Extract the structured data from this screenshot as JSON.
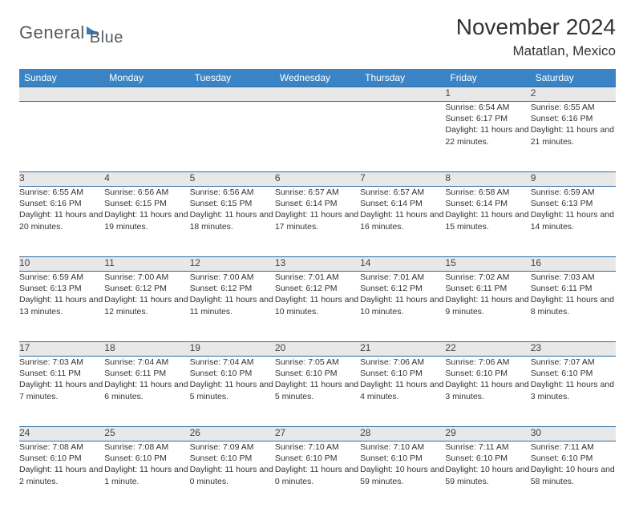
{
  "brand": {
    "word1": "General",
    "word2": "Blue"
  },
  "title": "November 2024",
  "location": "Matatlan, Mexico",
  "colors": {
    "header_bg": "#3a84c5",
    "header_fg": "#ffffff",
    "row_border": "#2f6aa0",
    "daynum_bg": "#e8e8e8",
    "brand_gray": "#555a5f",
    "brand_blue": "#2f7fc1"
  },
  "typography": {
    "body_pt": 10.5,
    "title_pt": 28,
    "weekday_pt": 12
  },
  "weekdays": [
    "Sunday",
    "Monday",
    "Tuesday",
    "Wednesday",
    "Thursday",
    "Friday",
    "Saturday"
  ],
  "weeks": [
    [
      null,
      null,
      null,
      null,
      null,
      {
        "n": "1",
        "sunrise": "Sunrise: 6:54 AM",
        "sunset": "Sunset: 6:17 PM",
        "daylight": "Daylight: 11 hours and 22 minutes."
      },
      {
        "n": "2",
        "sunrise": "Sunrise: 6:55 AM",
        "sunset": "Sunset: 6:16 PM",
        "daylight": "Daylight: 11 hours and 21 minutes."
      }
    ],
    [
      {
        "n": "3",
        "sunrise": "Sunrise: 6:55 AM",
        "sunset": "Sunset: 6:16 PM",
        "daylight": "Daylight: 11 hours and 20 minutes."
      },
      {
        "n": "4",
        "sunrise": "Sunrise: 6:56 AM",
        "sunset": "Sunset: 6:15 PM",
        "daylight": "Daylight: 11 hours and 19 minutes."
      },
      {
        "n": "5",
        "sunrise": "Sunrise: 6:56 AM",
        "sunset": "Sunset: 6:15 PM",
        "daylight": "Daylight: 11 hours and 18 minutes."
      },
      {
        "n": "6",
        "sunrise": "Sunrise: 6:57 AM",
        "sunset": "Sunset: 6:14 PM",
        "daylight": "Daylight: 11 hours and 17 minutes."
      },
      {
        "n": "7",
        "sunrise": "Sunrise: 6:57 AM",
        "sunset": "Sunset: 6:14 PM",
        "daylight": "Daylight: 11 hours and 16 minutes."
      },
      {
        "n": "8",
        "sunrise": "Sunrise: 6:58 AM",
        "sunset": "Sunset: 6:14 PM",
        "daylight": "Daylight: 11 hours and 15 minutes."
      },
      {
        "n": "9",
        "sunrise": "Sunrise: 6:59 AM",
        "sunset": "Sunset: 6:13 PM",
        "daylight": "Daylight: 11 hours and 14 minutes."
      }
    ],
    [
      {
        "n": "10",
        "sunrise": "Sunrise: 6:59 AM",
        "sunset": "Sunset: 6:13 PM",
        "daylight": "Daylight: 11 hours and 13 minutes."
      },
      {
        "n": "11",
        "sunrise": "Sunrise: 7:00 AM",
        "sunset": "Sunset: 6:12 PM",
        "daylight": "Daylight: 11 hours and 12 minutes."
      },
      {
        "n": "12",
        "sunrise": "Sunrise: 7:00 AM",
        "sunset": "Sunset: 6:12 PM",
        "daylight": "Daylight: 11 hours and 11 minutes."
      },
      {
        "n": "13",
        "sunrise": "Sunrise: 7:01 AM",
        "sunset": "Sunset: 6:12 PM",
        "daylight": "Daylight: 11 hours and 10 minutes."
      },
      {
        "n": "14",
        "sunrise": "Sunrise: 7:01 AM",
        "sunset": "Sunset: 6:12 PM",
        "daylight": "Daylight: 11 hours and 10 minutes."
      },
      {
        "n": "15",
        "sunrise": "Sunrise: 7:02 AM",
        "sunset": "Sunset: 6:11 PM",
        "daylight": "Daylight: 11 hours and 9 minutes."
      },
      {
        "n": "16",
        "sunrise": "Sunrise: 7:03 AM",
        "sunset": "Sunset: 6:11 PM",
        "daylight": "Daylight: 11 hours and 8 minutes."
      }
    ],
    [
      {
        "n": "17",
        "sunrise": "Sunrise: 7:03 AM",
        "sunset": "Sunset: 6:11 PM",
        "daylight": "Daylight: 11 hours and 7 minutes."
      },
      {
        "n": "18",
        "sunrise": "Sunrise: 7:04 AM",
        "sunset": "Sunset: 6:11 PM",
        "daylight": "Daylight: 11 hours and 6 minutes."
      },
      {
        "n": "19",
        "sunrise": "Sunrise: 7:04 AM",
        "sunset": "Sunset: 6:10 PM",
        "daylight": "Daylight: 11 hours and 5 minutes."
      },
      {
        "n": "20",
        "sunrise": "Sunrise: 7:05 AM",
        "sunset": "Sunset: 6:10 PM",
        "daylight": "Daylight: 11 hours and 5 minutes."
      },
      {
        "n": "21",
        "sunrise": "Sunrise: 7:06 AM",
        "sunset": "Sunset: 6:10 PM",
        "daylight": "Daylight: 11 hours and 4 minutes."
      },
      {
        "n": "22",
        "sunrise": "Sunrise: 7:06 AM",
        "sunset": "Sunset: 6:10 PM",
        "daylight": "Daylight: 11 hours and 3 minutes."
      },
      {
        "n": "23",
        "sunrise": "Sunrise: 7:07 AM",
        "sunset": "Sunset: 6:10 PM",
        "daylight": "Daylight: 11 hours and 3 minutes."
      }
    ],
    [
      {
        "n": "24",
        "sunrise": "Sunrise: 7:08 AM",
        "sunset": "Sunset: 6:10 PM",
        "daylight": "Daylight: 11 hours and 2 minutes."
      },
      {
        "n": "25",
        "sunrise": "Sunrise: 7:08 AM",
        "sunset": "Sunset: 6:10 PM",
        "daylight": "Daylight: 11 hours and 1 minute."
      },
      {
        "n": "26",
        "sunrise": "Sunrise: 7:09 AM",
        "sunset": "Sunset: 6:10 PM",
        "daylight": "Daylight: 11 hours and 0 minutes."
      },
      {
        "n": "27",
        "sunrise": "Sunrise: 7:10 AM",
        "sunset": "Sunset: 6:10 PM",
        "daylight": "Daylight: 11 hours and 0 minutes."
      },
      {
        "n": "28",
        "sunrise": "Sunrise: 7:10 AM",
        "sunset": "Sunset: 6:10 PM",
        "daylight": "Daylight: 10 hours and 59 minutes."
      },
      {
        "n": "29",
        "sunrise": "Sunrise: 7:11 AM",
        "sunset": "Sunset: 6:10 PM",
        "daylight": "Daylight: 10 hours and 59 minutes."
      },
      {
        "n": "30",
        "sunrise": "Sunrise: 7:11 AM",
        "sunset": "Sunset: 6:10 PM",
        "daylight": "Daylight: 10 hours and 58 minutes."
      }
    ]
  ]
}
